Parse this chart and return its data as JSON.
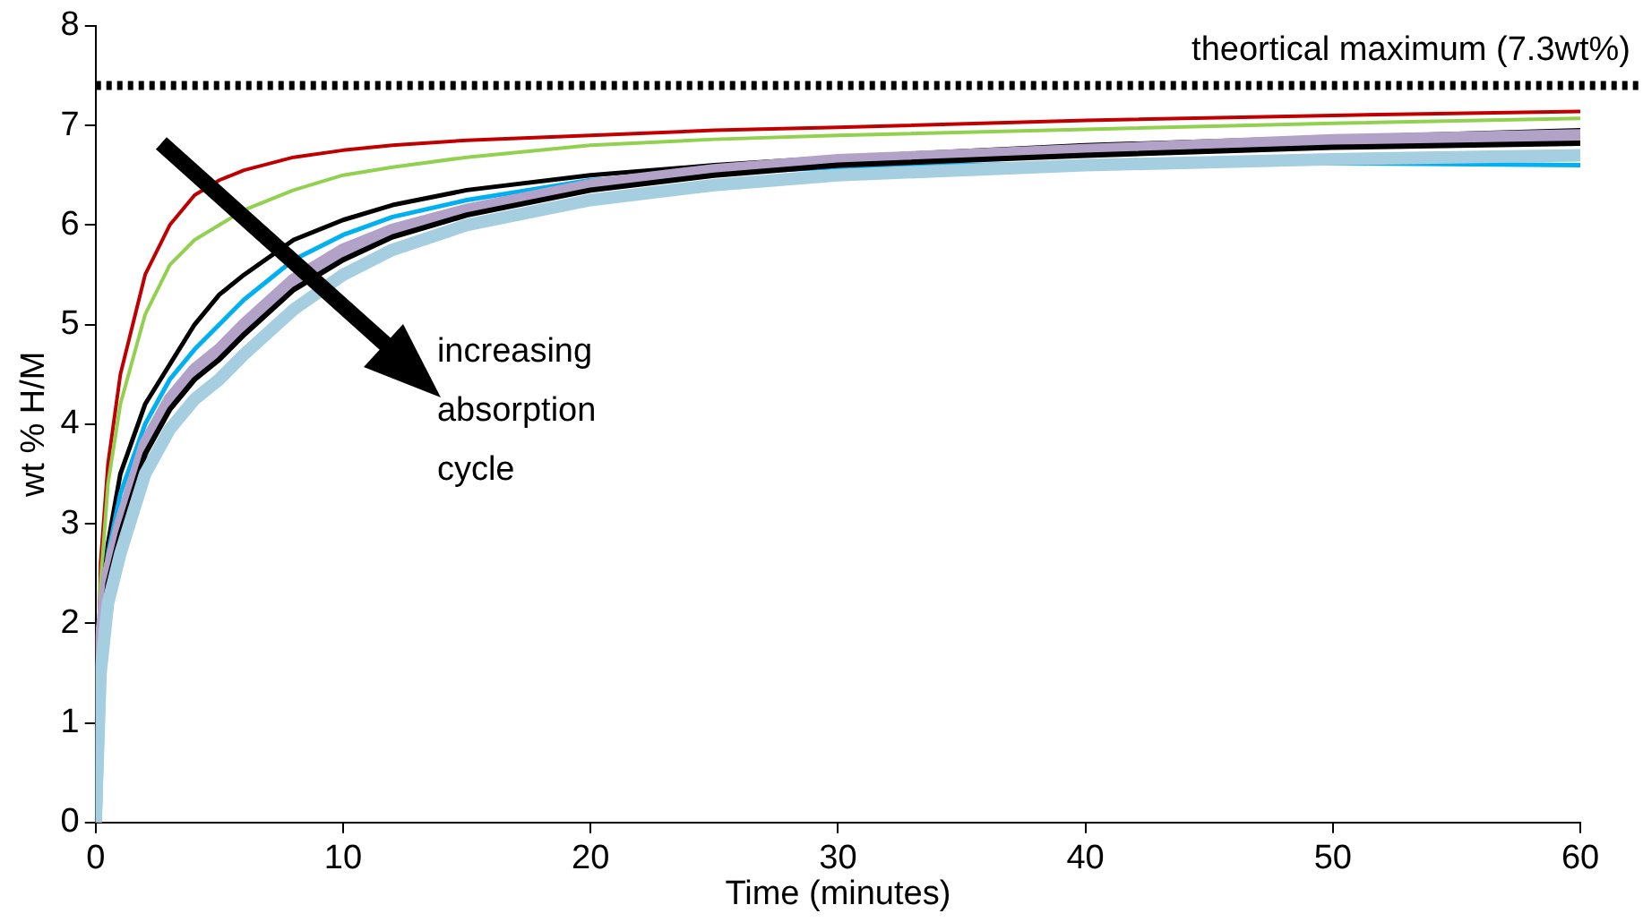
{
  "chart_data": {
    "type": "line",
    "xlabel": "Time (minutes)",
    "ylabel": "wt % H/M",
    "xlim": [
      0,
      60
    ],
    "xticks": [
      0,
      10,
      20,
      30,
      40,
      50,
      60
    ],
    "ylim": [
      0,
      8
    ],
    "yticks": [
      0,
      1,
      2,
      3,
      4,
      5,
      6,
      7,
      8
    ],
    "grid": false,
    "legend": false,
    "marker": "none",
    "line_style": "solid",
    "x": [
      0,
      0.2,
      0.5,
      1,
      2,
      3,
      4,
      5,
      6,
      8,
      10,
      12,
      15,
      20,
      25,
      30,
      40,
      50,
      60
    ],
    "series": [
      {
        "color": "#c00000",
        "values": [
          0,
          2.6,
          3.6,
          4.5,
          5.5,
          6.0,
          6.3,
          6.45,
          6.55,
          6.68,
          6.75,
          6.8,
          6.85,
          6.9,
          6.95,
          6.98,
          7.05,
          7.1,
          7.14
        ]
      },
      {
        "color": "#92d050",
        "values": [
          0,
          2.4,
          3.4,
          4.2,
          5.1,
          5.6,
          5.85,
          6.0,
          6.15,
          6.35,
          6.5,
          6.58,
          6.68,
          6.8,
          6.86,
          6.9,
          6.96,
          7.02,
          7.07
        ]
      },
      {
        "color": "#000000",
        "values": [
          0,
          2.1,
          2.8,
          3.5,
          4.2,
          4.6,
          5.0,
          5.3,
          5.5,
          5.85,
          6.05,
          6.2,
          6.35,
          6.5,
          6.6,
          6.68,
          6.8,
          6.88,
          6.95
        ]
      },
      {
        "color": "#00b0f0",
        "values": [
          0,
          2.0,
          2.7,
          3.3,
          4.0,
          4.45,
          4.75,
          5.0,
          5.25,
          5.65,
          5.9,
          6.08,
          6.25,
          6.45,
          6.52,
          6.58,
          6.62,
          6.62,
          6.6
        ]
      },
      {
        "color": "#b3a2c7",
        "values": [
          0,
          1.8,
          2.5,
          3.0,
          3.8,
          4.25,
          4.55,
          4.75,
          5.0,
          5.45,
          5.75,
          5.95,
          6.15,
          6.4,
          6.55,
          6.65,
          6.75,
          6.85,
          6.9
        ]
      },
      {
        "color": "#000000",
        "values": [
          0,
          1.7,
          2.4,
          2.9,
          3.7,
          4.15,
          4.45,
          4.65,
          4.9,
          5.35,
          5.65,
          5.88,
          6.1,
          6.35,
          6.5,
          6.6,
          6.7,
          6.78,
          6.82
        ]
      },
      {
        "color": "#a5cfe0",
        "values": [
          0,
          1.5,
          2.2,
          2.7,
          3.5,
          3.95,
          4.25,
          4.45,
          4.7,
          5.15,
          5.5,
          5.75,
          6.0,
          6.25,
          6.4,
          6.5,
          6.6,
          6.66,
          6.7
        ]
      }
    ],
    "ref_lines": [
      {
        "axis": "y",
        "value": 7.4,
        "label": "theortical maximum (7.3wt%)",
        "color": "#000000",
        "line_style": "dotted"
      }
    ],
    "annotations": [
      "increasing\nabsorption\ncycle"
    ]
  }
}
